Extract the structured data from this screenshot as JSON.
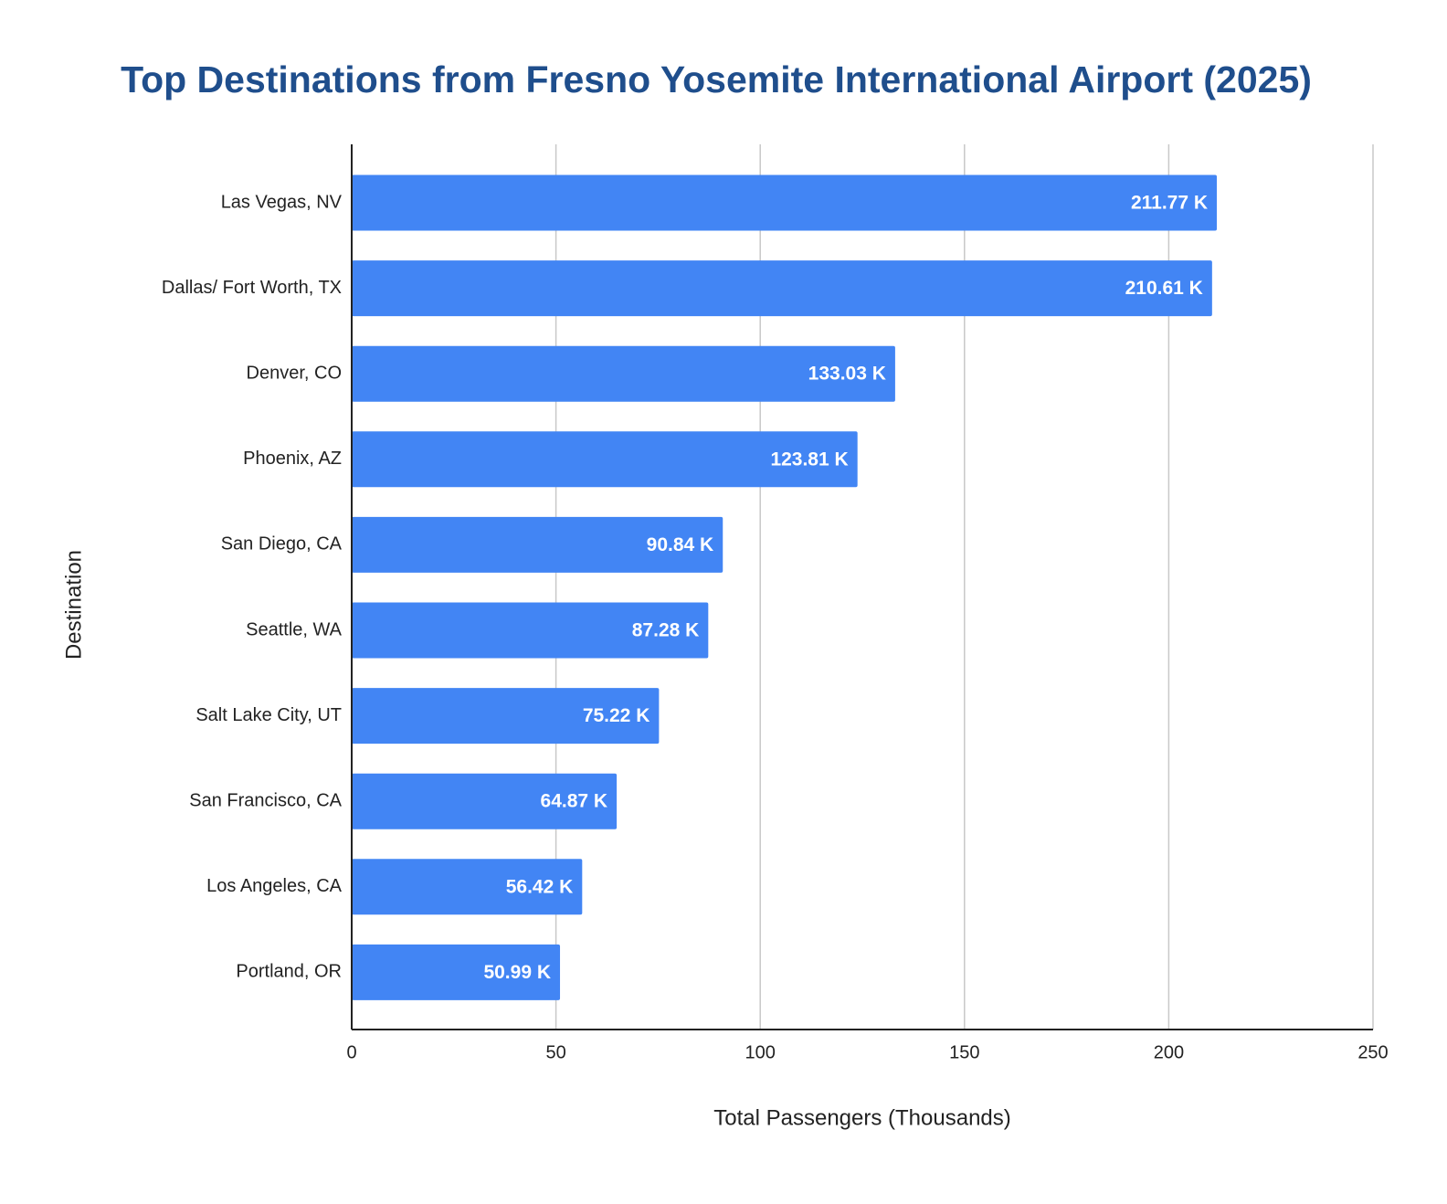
{
  "chart_data": {
    "type": "bar",
    "orientation": "horizontal",
    "title": "Top Destinations from Fresno Yosemite International Airport (2025)",
    "x_label": "Total Passengers (Thousands)",
    "y_label": "Destination",
    "categories": [
      "Las Vegas, NV",
      "Dallas/ Fort Worth, TX",
      "Denver, CO",
      "Phoenix, AZ",
      "San Diego, CA",
      "Seattle, WA",
      "Salt Lake City, UT",
      "San Francisco, CA",
      "Los Angeles, CA",
      "Portland, OR"
    ],
    "values": [
      211.77,
      210.61,
      133.03,
      123.81,
      90.84,
      87.28,
      75.22,
      64.87,
      56.42,
      50.99
    ],
    "value_labels": [
      "211.77 K",
      "210.61 K",
      "133.03 K",
      "123.81 K",
      "90.84 K",
      "87.28 K",
      "75.22 K",
      "64.87 K",
      "56.42 K",
      "50.99 K"
    ],
    "color": "#4285f4",
    "xlim": [
      0,
      250
    ],
    "xticks": [
      0,
      50,
      100,
      150,
      200,
      250
    ],
    "grid": true
  }
}
